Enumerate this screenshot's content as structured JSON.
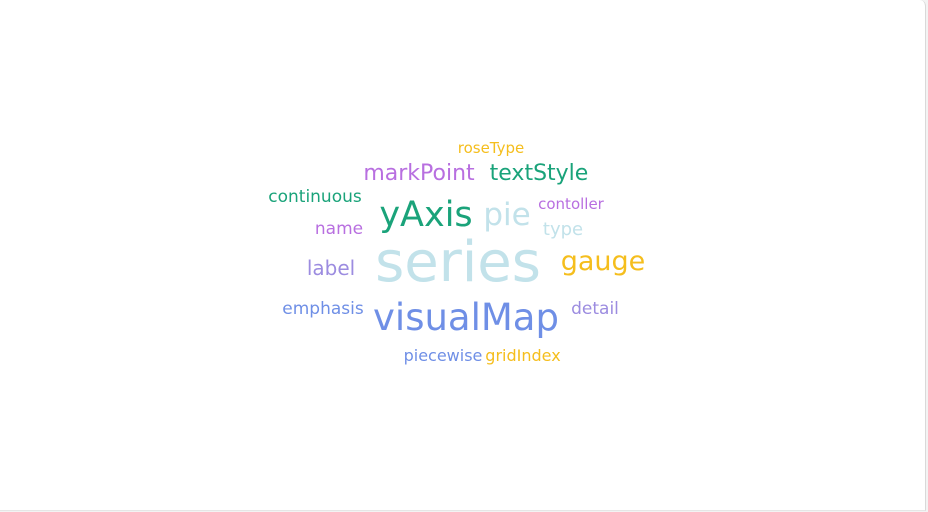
{
  "chart_data": {
    "type": "wordcloud",
    "words": [
      {
        "text": "series",
        "weight": 10,
        "color": "#c2e2ea"
      },
      {
        "text": "visualMap",
        "weight": 7,
        "color": "#6f8fe6"
      },
      {
        "text": "yAxis",
        "weight": 7,
        "color": "#1aa37a"
      },
      {
        "text": "pie",
        "weight": 6,
        "color": "#c2e2ea"
      },
      {
        "text": "gauge",
        "weight": 6,
        "color": "#f5be1d"
      },
      {
        "text": "markPoint",
        "weight": 5,
        "color": "#b86fe0"
      },
      {
        "text": "textStyle",
        "weight": 5,
        "color": "#1aa37a"
      },
      {
        "text": "label",
        "weight": 4.5,
        "color": "#9c8ce0"
      },
      {
        "text": "continuous",
        "weight": 4,
        "color": "#1aa37a"
      },
      {
        "text": "name",
        "weight": 4,
        "color": "#b86fe0"
      },
      {
        "text": "emphasis",
        "weight": 4,
        "color": "#6f8fe6"
      },
      {
        "text": "detail",
        "weight": 4,
        "color": "#9c8ce0"
      },
      {
        "text": "type",
        "weight": 4,
        "color": "#c2e2ea"
      },
      {
        "text": "piecewise",
        "weight": 3.5,
        "color": "#6f8fe6"
      },
      {
        "text": "gridIndex",
        "weight": 3.5,
        "color": "#f5be1d"
      },
      {
        "text": "contoller",
        "weight": 3.5,
        "color": "#b86fe0"
      },
      {
        "text": "roseType",
        "weight": 3.5,
        "color": "#f5be1d"
      }
    ]
  }
}
